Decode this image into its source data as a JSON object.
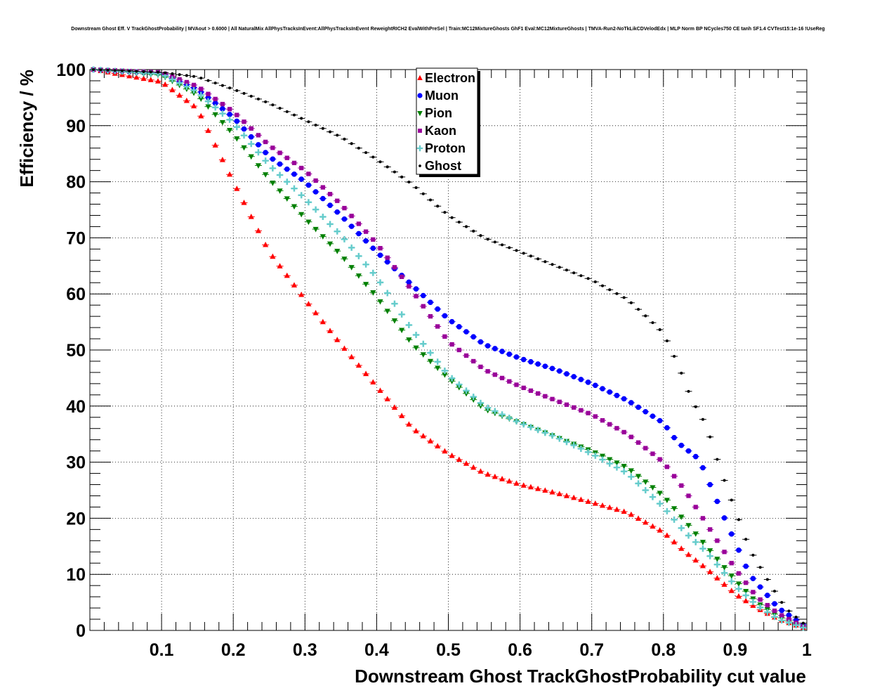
{
  "chart_data": {
    "type": "scatter",
    "title": "Downstream Ghost Eff. V TrackGhostProbability | MVAout > 0.6000 | All NaturalMix AllPhysTracksInEvent:AllPhysTracksInEvent ReweightRICH2 EvalWithPreSel | Train:MC12MixtureGhosts GhF1 Eval:MC12MixtureGhosts | TMVA-Run2-NoTkLikCDVelodEdx | MLP Norm BP NCycles750 CE tanh SF1.4 CVTest15:1e-16 !UseReg",
    "xlabel": "Downstream Ghost TrackGhostProbability cut value",
    "ylabel": "Efficiency / %",
    "xlim": [
      0,
      1
    ],
    "ylim": [
      0,
      100
    ],
    "xticks": [
      0.1,
      0.2,
      0.3,
      0.4,
      0.5,
      0.6,
      0.7,
      0.8,
      0.9,
      1
    ],
    "xtick_labels": [
      "0.1",
      "0.2",
      "0.3",
      "0.4",
      "0.5",
      "0.6",
      "0.7",
      "0.8",
      "0.9",
      "1"
    ],
    "yticks": [
      0,
      10,
      20,
      30,
      40,
      50,
      60,
      70,
      80,
      90,
      100
    ],
    "ytick_labels": [
      "0",
      "10",
      "20",
      "30",
      "40",
      "50",
      "60",
      "70",
      "80",
      "90",
      "100"
    ],
    "grid": true,
    "legend_position": "top-center",
    "point_step": 0.01,
    "series": [
      {
        "name": "Electron",
        "color": "#ff0000",
        "marker": "triangle-up",
        "x": [
          0.005,
          0.1,
          0.15,
          0.2,
          0.25,
          0.3,
          0.35,
          0.4,
          0.45,
          0.5,
          0.55,
          0.6,
          0.65,
          0.7,
          0.75,
          0.8,
          0.83,
          0.86,
          0.9,
          0.93,
          0.96,
          0.995
        ],
        "y": [
          100,
          97.8,
          93,
          80,
          67.5,
          59,
          51,
          43.5,
          36,
          31.5,
          28,
          26,
          24.5,
          22.8,
          21,
          17.5,
          14,
          11,
          6.5,
          4,
          2,
          0.5
        ]
      },
      {
        "name": "Muon",
        "color": "#0000ff",
        "marker": "circle",
        "x": [
          0.005,
          0.1,
          0.15,
          0.2,
          0.25,
          0.3,
          0.35,
          0.4,
          0.45,
          0.5,
          0.55,
          0.6,
          0.65,
          0.7,
          0.75,
          0.8,
          0.82,
          0.85,
          0.88,
          0.92,
          0.96,
          0.995
        ],
        "y": [
          100,
          99.3,
          96.5,
          91.5,
          84.5,
          80,
          74,
          67.5,
          61.5,
          55.5,
          51,
          48.5,
          46.5,
          44,
          41,
          37,
          33.5,
          30.5,
          21.5,
          10,
          4,
          1
        ]
      },
      {
        "name": "Pion",
        "color": "#008000",
        "marker": "triangle-down",
        "x": [
          0.005,
          0.1,
          0.15,
          0.2,
          0.25,
          0.3,
          0.35,
          0.4,
          0.45,
          0.5,
          0.55,
          0.6,
          0.65,
          0.7,
          0.75,
          0.8,
          0.83,
          0.86,
          0.9,
          0.93,
          0.96,
          0.995
        ],
        "y": [
          100,
          99.0,
          95.5,
          88.5,
          80.5,
          73.5,
          67,
          59.5,
          51,
          45,
          39.5,
          37,
          34.5,
          32,
          29,
          24,
          19.5,
          15,
          9,
          5,
          2.5,
          0.6
        ]
      },
      {
        "name": "Kaon",
        "color": "#990099",
        "marker": "square",
        "x": [
          0.005,
          0.1,
          0.15,
          0.2,
          0.25,
          0.3,
          0.35,
          0.4,
          0.45,
          0.5,
          0.55,
          0.6,
          0.65,
          0.7,
          0.75,
          0.8,
          0.83,
          0.86,
          0.9,
          0.93,
          0.96,
          0.995
        ],
        "y": [
          100,
          99.5,
          97,
          92.5,
          86.5,
          82,
          76,
          69,
          60.5,
          51.5,
          46.5,
          43.5,
          41,
          38.5,
          35,
          30,
          25,
          19,
          11,
          6,
          3,
          0.7
        ]
      },
      {
        "name": "Proton",
        "color": "#66cccc",
        "marker": "cross",
        "x": [
          0.005,
          0.1,
          0.15,
          0.2,
          0.25,
          0.3,
          0.35,
          0.4,
          0.45,
          0.5,
          0.55,
          0.6,
          0.65,
          0.7,
          0.75,
          0.8,
          0.83,
          0.86,
          0.9,
          0.93,
          0.96,
          0.995
        ],
        "y": [
          100,
          99.2,
          96,
          90.5,
          83,
          77,
          70.5,
          63,
          53.5,
          45.5,
          40,
          37,
          34.5,
          31.5,
          28,
          22,
          17.5,
          14,
          8,
          4.5,
          2,
          0.5
        ]
      },
      {
        "name": "Ghost",
        "color": "#000000",
        "marker": "dot",
        "x": [
          0.005,
          0.1,
          0.15,
          0.2,
          0.25,
          0.3,
          0.35,
          0.4,
          0.45,
          0.5,
          0.55,
          0.6,
          0.65,
          0.7,
          0.75,
          0.78,
          0.8,
          0.82,
          0.84,
          0.86,
          0.88,
          0.9,
          0.92,
          0.95,
          0.97,
          0.995
        ],
        "y": [
          100,
          99.5,
          98.7,
          96.5,
          94,
          91,
          88,
          84,
          79.5,
          74,
          70,
          67.5,
          65,
          62.5,
          59,
          55.5,
          53,
          47.5,
          41,
          36.5,
          28.5,
          21.5,
          14.5,
          8,
          4,
          1.3
        ]
      }
    ]
  }
}
